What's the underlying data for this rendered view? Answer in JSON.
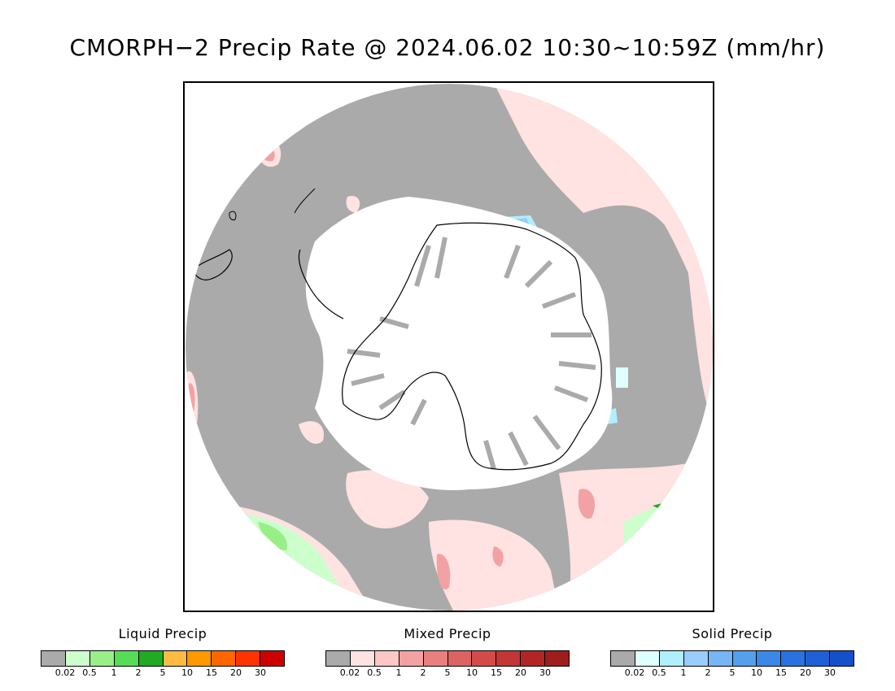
{
  "title": "CMORPH−2 Precip Rate @ 2024.06.02 10:30~10:59Z (mm/hr)",
  "map": {
    "projection": "south-polar-stereographic",
    "colors": {
      "no_precip": "#aaaaaa",
      "ice_mask": "#ffffff",
      "coastline": "#000000"
    }
  },
  "legends": [
    {
      "title": "Liquid Precip",
      "colors": [
        "#aaaaaa",
        "#ccffcc",
        "#99ee88",
        "#55dd55",
        "#22aa22",
        "#ffbb44",
        "#ff9900",
        "#ff6600",
        "#ff3300",
        "#cc0000"
      ],
      "ticks": [
        "0.02",
        "0.5",
        "1",
        "2",
        "5",
        "10",
        "15",
        "20",
        "30"
      ]
    },
    {
      "title": "Mixed Precip",
      "colors": [
        "#aaaaaa",
        "#ffe2e2",
        "#ffc6c6",
        "#f2a2a2",
        "#e88080",
        "#dd6262",
        "#d44a4a",
        "#c43535",
        "#b32525",
        "#a01d1d"
      ],
      "ticks": [
        "0.02",
        "0.5",
        "1",
        "2",
        "5",
        "10",
        "15",
        "20",
        "30"
      ]
    },
    {
      "title": "Solid Precip",
      "colors": [
        "#aaaaaa",
        "#e0ffff",
        "#b0efff",
        "#99ccff",
        "#77b5f5",
        "#55a0ee",
        "#3a88e8",
        "#2a72e0",
        "#1f60d6",
        "#1450cc"
      ],
      "ticks": [
        "0.02",
        "0.5",
        "1",
        "2",
        "5",
        "10",
        "15",
        "20",
        "30"
      ]
    }
  ]
}
